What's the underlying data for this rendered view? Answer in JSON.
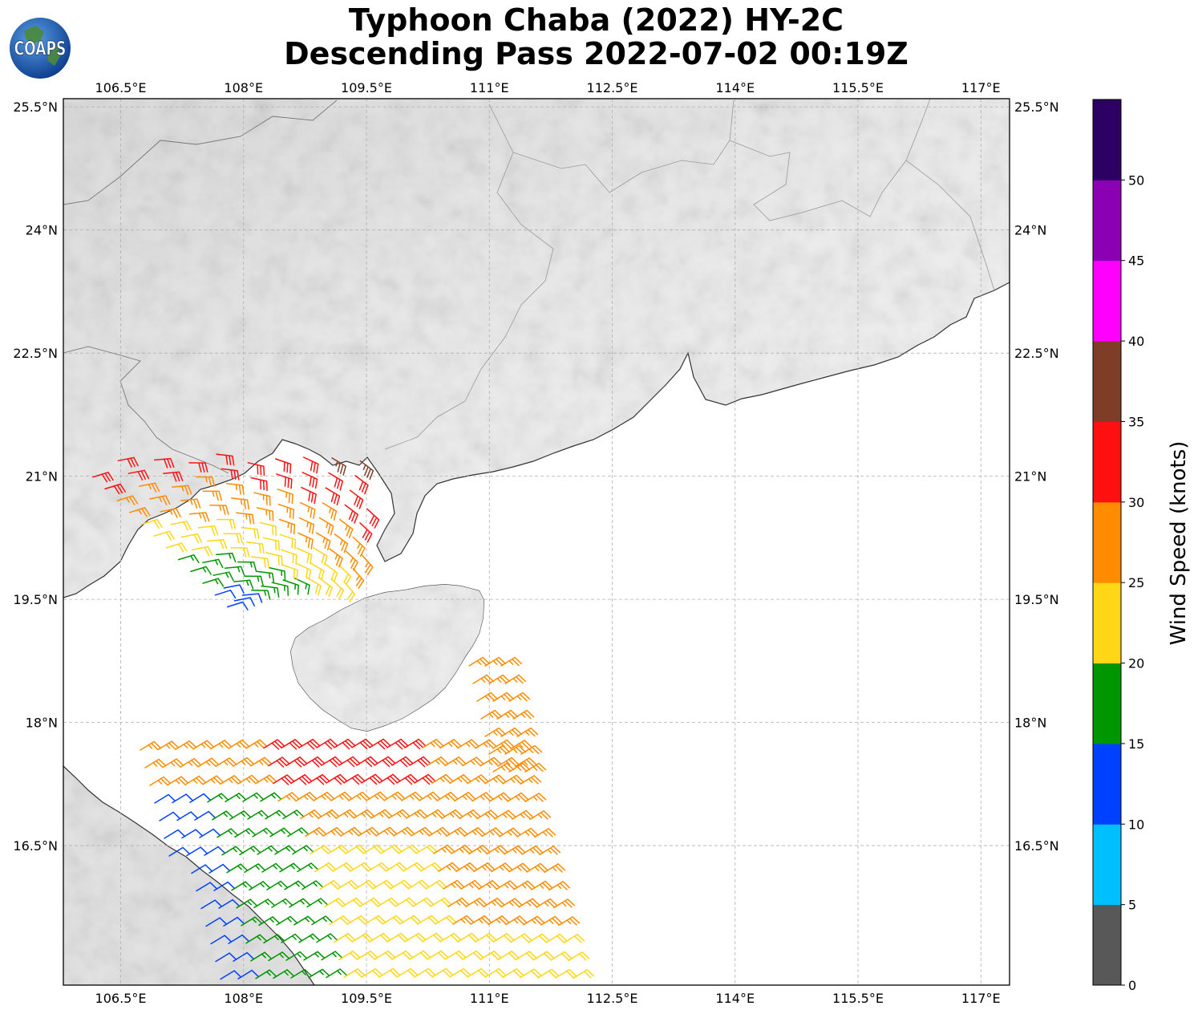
{
  "title": {
    "line1": "Typhoon Chaba (2022) HY-2C",
    "line2": "Descending Pass 2022-07-02 00:19Z"
  },
  "logo": {
    "text": "COAPS"
  },
  "map": {
    "lon_range": [
      105.8,
      117.35
    ],
    "lat_range": [
      14.8,
      25.6
    ],
    "lon_ticks": [
      "106.5°E",
      "108°E",
      "109.5°E",
      "111°E",
      "112.5°E",
      "114°E",
      "115.5°E",
      "117°E"
    ],
    "lon_tick_values": [
      106.5,
      108,
      109.5,
      111,
      112.5,
      114,
      115.5,
      117
    ],
    "lat_ticks": [
      "16.5°N",
      "18°N",
      "19.5°N",
      "21°N",
      "22.5°N",
      "24°N",
      "25.5°N"
    ],
    "lat_tick_values": [
      16.5,
      18,
      19.5,
      21,
      22.5,
      24,
      25.5
    ],
    "grid": true,
    "background": "grayscale topography over land, white ocean"
  },
  "colorbar": {
    "label": "Wind Speed (knots)",
    "ticks": [
      "0",
      "5",
      "10",
      "15",
      "20",
      "25",
      "30",
      "35",
      "40",
      "45",
      "50"
    ],
    "bins": [
      {
        "min": 0,
        "max": 5,
        "color": "#585858"
      },
      {
        "min": 5,
        "max": 10,
        "color": "#00bfff"
      },
      {
        "min": 10,
        "max": 15,
        "color": "#0040ff"
      },
      {
        "min": 15,
        "max": 20,
        "color": "#009600"
      },
      {
        "min": 20,
        "max": 25,
        "color": "#ffd716"
      },
      {
        "min": 25,
        "max": 30,
        "color": "#ff8c00"
      },
      {
        "min": 30,
        "max": 35,
        "color": "#ff1010"
      },
      {
        "min": 35,
        "max": 40,
        "color": "#7f3d27"
      },
      {
        "min": 40,
        "max": 45,
        "color": "#ff00ff"
      },
      {
        "min": 45,
        "max": 50,
        "color": "#8c00b4"
      },
      {
        "min": 50,
        "max": 55,
        "color": "#2d0064"
      }
    ]
  }
}
